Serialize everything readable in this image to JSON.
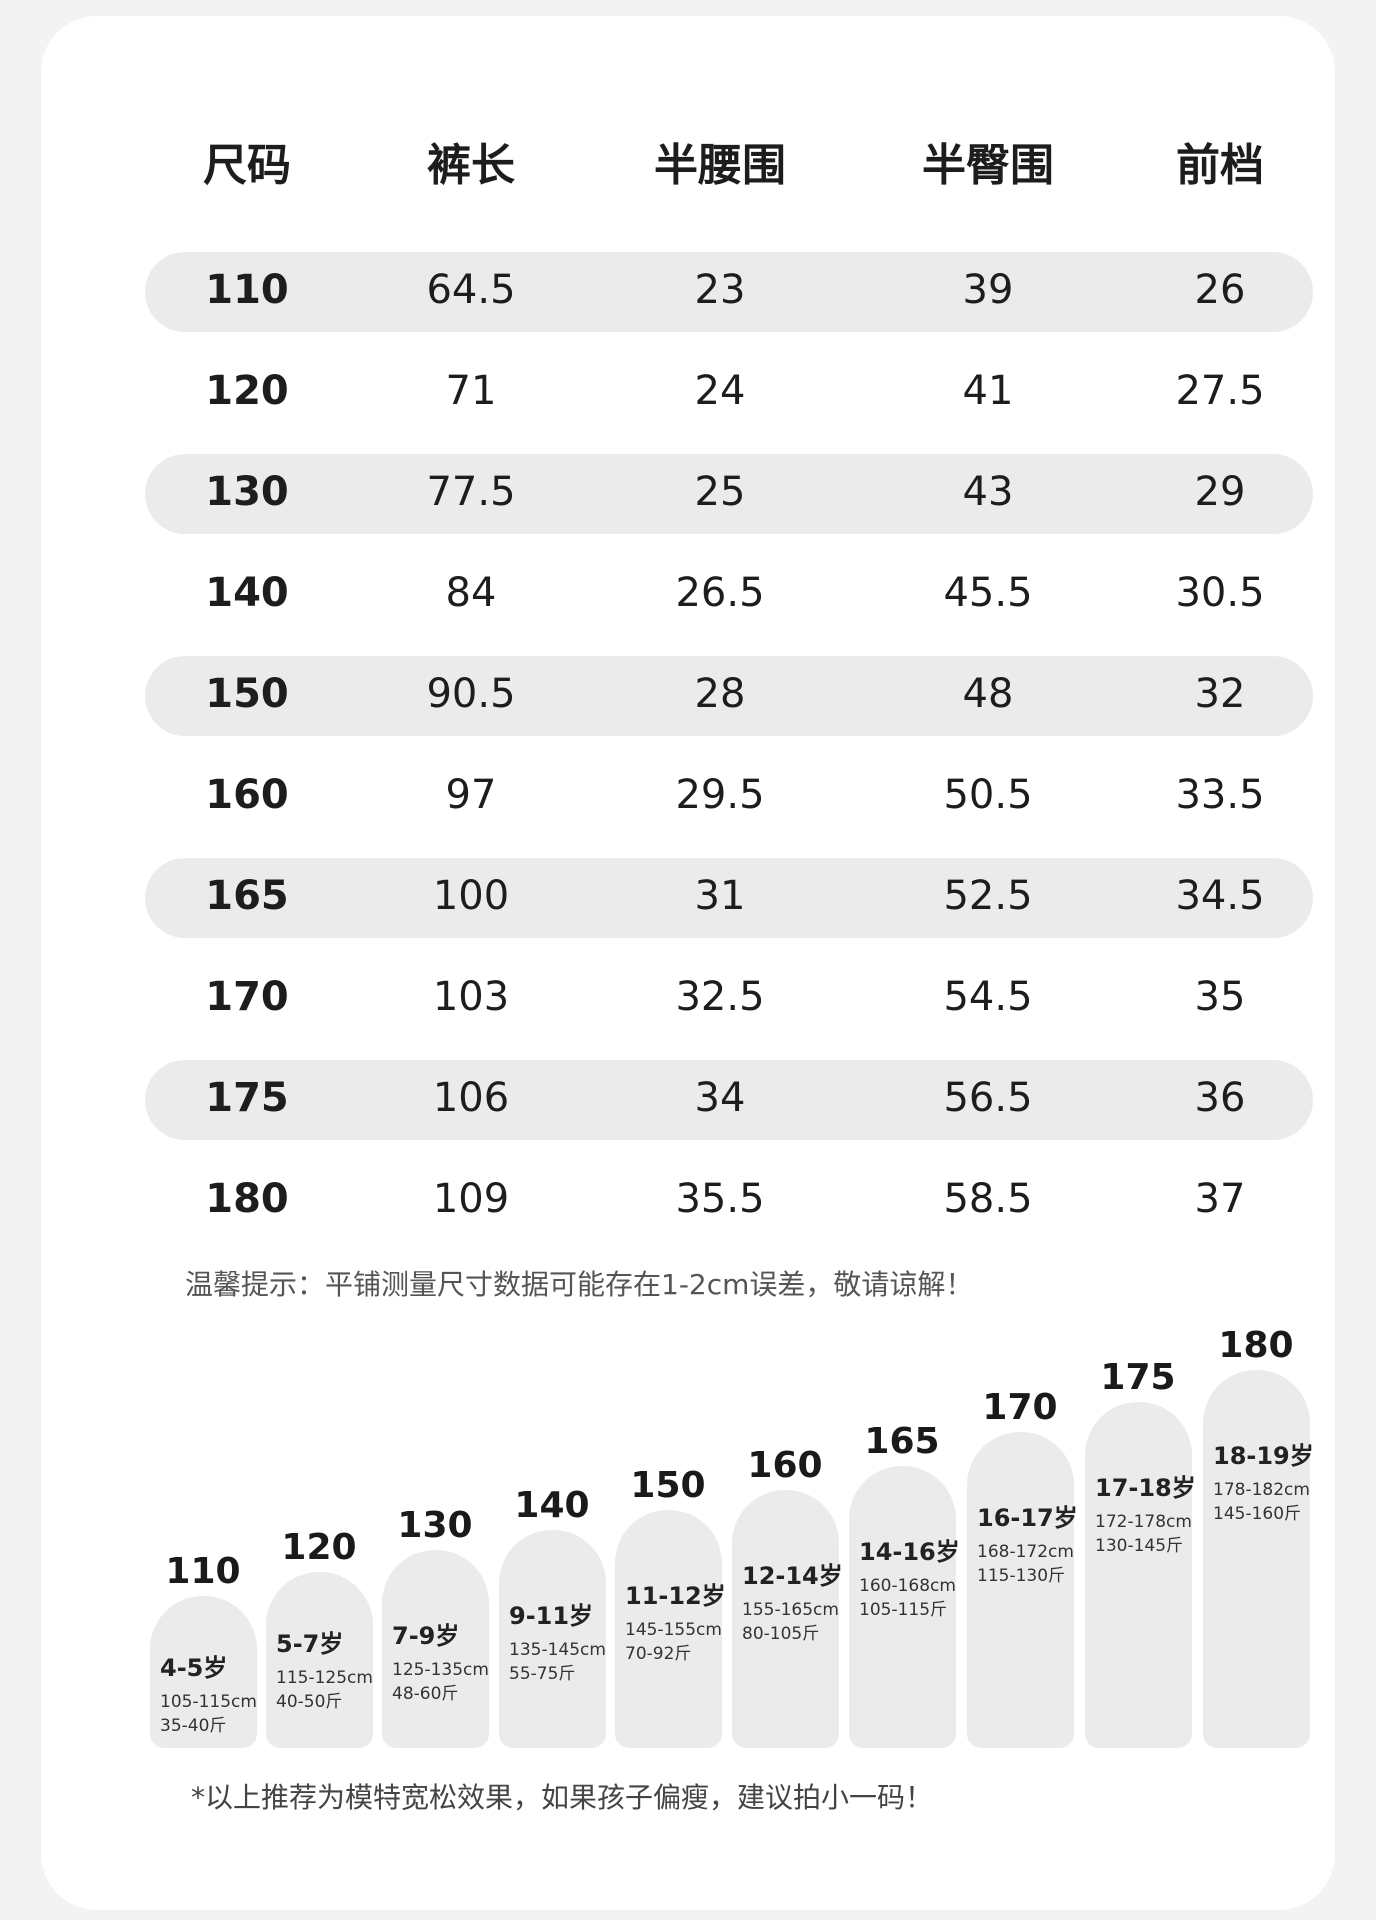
{
  "headers": [
    "尺码",
    "裤长",
    "半腰围",
    "半臀围",
    "前档"
  ],
  "rows": [
    [
      "110",
      "64.5",
      "23",
      "39",
      "26"
    ],
    [
      "120",
      "71",
      "24",
      "41",
      "27.5"
    ],
    [
      "130",
      "77.5",
      "25",
      "43",
      "29"
    ],
    [
      "140",
      "84",
      "26.5",
      "45.5",
      "30.5"
    ],
    [
      "150",
      "90.5",
      "28",
      "48",
      "32"
    ],
    [
      "160",
      "97",
      "29.5",
      "50.5",
      "33.5"
    ],
    [
      "165",
      "100",
      "31",
      "52.5",
      "34.5"
    ],
    [
      "170",
      "103",
      "32.5",
      "54.5",
      "35"
    ],
    [
      "175",
      "106",
      "34",
      "56.5",
      "36"
    ],
    [
      "180",
      "109",
      "35.5",
      "58.5",
      "37"
    ]
  ],
  "tip": "温馨提示：平铺测量尺寸数据可能存在1-2cm误差，敬请谅解！",
  "recommendations": [
    {
      "size": "110",
      "age": "4-5岁",
      "height": "105-115cm",
      "weight": "35-40斤"
    },
    {
      "size": "120",
      "age": "5-7岁",
      "height": "115-125cm",
      "weight": "40-50斤"
    },
    {
      "size": "130",
      "age": "7-9岁",
      "height": "125-135cm",
      "weight": "48-60斤"
    },
    {
      "size": "140",
      "age": "9-11岁",
      "height": "135-145cm",
      "weight": "55-75斤"
    },
    {
      "size": "150",
      "age": "11-12岁",
      "height": "145-155cm",
      "weight": "70-92斤"
    },
    {
      "size": "160",
      "age": "12-14岁",
      "height": "155-165cm",
      "weight": "80-105斤"
    },
    {
      "size": "165",
      "age": "14-16岁",
      "height": "160-168cm",
      "weight": "105-115斤"
    },
    {
      "size": "170",
      "age": "16-17岁",
      "height": "168-172cm",
      "weight": "115-130斤"
    },
    {
      "size": "175",
      "age": "17-18岁",
      "height": "172-178cm",
      "weight": "130-145斤"
    },
    {
      "size": "180",
      "age": "18-19岁",
      "height": "178-182cm",
      "weight": "145-160斤"
    }
  ],
  "note": "*以上推荐为模特宽松效果，如果孩子偏瘦，建议拍小一码！"
}
